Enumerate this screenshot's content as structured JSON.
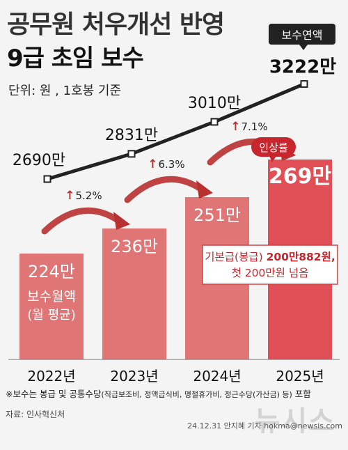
{
  "header": {
    "title_line1": "공무원 처우개선 반영",
    "title_line2": "9급 초임 보수",
    "unit_note": "단위: 원 , 1호봉 기준"
  },
  "chart_data": {
    "type": "bar",
    "categories": [
      "2022년",
      "2023년",
      "2024년",
      "2025년"
    ],
    "series": [
      {
        "name": "보수월액",
        "values": [
          224,
          236,
          251,
          269
        ],
        "labels": [
          "224만",
          "236만",
          "251만",
          "269만"
        ]
      },
      {
        "name": "보수연액",
        "values": [
          2690,
          2831,
          3010,
          3222
        ],
        "labels": [
          "2690만",
          "2831만",
          "3010만",
          "3222만"
        ],
        "chart": "line"
      }
    ],
    "growth": [
      "5.2%",
      "6.3%",
      "7.1%"
    ],
    "growth_badge": "인상률",
    "bar_note_line1": "보수월액",
    "bar_note_line2": "(월 평균)",
    "callout_line1_prefix": "기본급(봉급) ",
    "callout_line1_bold": "200만882원,",
    "callout_line2": "첫 200만원 넘음",
    "legend_line": "보수연액",
    "colors": {
      "bar": "#e07575",
      "bar_highlight": "#e04f55",
      "arrow": "#b8302f",
      "line": "#222222",
      "value_text": "#ffffff"
    }
  },
  "footer": {
    "footnote_main": "※보수는 봉급 및 공통수당",
    "footnote_detail": "(직급보조비, 정액급식비, 명절휴가비, 정근수당(가산금) 등)",
    "footnote_end": " 포함",
    "source": "자료: 인사혁신처",
    "credit": "24.12.31 안지혜 기자 hokma@newsis.com",
    "watermark": "뉴시스"
  }
}
